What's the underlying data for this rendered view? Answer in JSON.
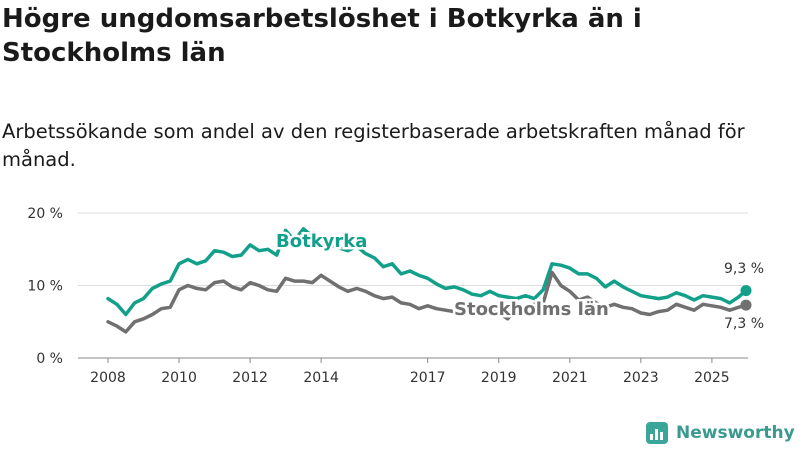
{
  "title": "Högre ungdomsarbetslöshet i Botkyrka än i Stockholms län",
  "subtitle": "Arbetssökande som andel av den registerbaserade arbetskraften månad för månad.",
  "brand": {
    "name": "Newsworthy",
    "icon": "newsworthy-logo-icon"
  },
  "colors": {
    "botkyrka": "#13a08a",
    "stockholm": "#707070",
    "grid": "#dddddd",
    "axis": "#888888"
  },
  "chart_data": {
    "type": "line",
    "title": "Högre ungdomsarbetslöshet i Botkyrka än i Stockholms län",
    "subtitle": "Arbetssökande som andel av den registerbaserade arbetskraften månad för månad.",
    "xlabel": "",
    "ylabel": "",
    "ylim": [
      0,
      20
    ],
    "xlim": [
      2008.0,
      2025.96
    ],
    "y_ticks": [
      {
        "value": 0,
        "label": "0 %"
      },
      {
        "value": 10,
        "label": "10 %"
      },
      {
        "value": 20,
        "label": "20 %"
      }
    ],
    "x_ticks": [
      {
        "value": 2008,
        "label": "2008"
      },
      {
        "value": 2010,
        "label": "2010"
      },
      {
        "value": 2012,
        "label": "2012"
      },
      {
        "value": 2014,
        "label": "2014"
      },
      {
        "value": 2017,
        "label": "2017"
      },
      {
        "value": 2019,
        "label": "2019"
      },
      {
        "value": 2021,
        "label": "2021"
      },
      {
        "value": 2023,
        "label": "2023"
      },
      {
        "value": 2025,
        "label": "2025"
      }
    ],
    "grid": true,
    "series": [
      {
        "name": "Botkyrka",
        "end_label": "9,3 %",
        "x": [
          2008.0,
          2008.25,
          2008.5,
          2008.75,
          2009.0,
          2009.25,
          2009.5,
          2009.75,
          2010.0,
          2010.25,
          2010.5,
          2010.75,
          2011.0,
          2011.25,
          2011.5,
          2011.75,
          2012.0,
          2012.25,
          2012.5,
          2012.75,
          2013.0,
          2013.25,
          2013.5,
          2013.75,
          2014.0,
          2014.25,
          2014.5,
          2014.75,
          2015.0,
          2015.25,
          2015.5,
          2015.75,
          2016.0,
          2016.25,
          2016.5,
          2016.75,
          2017.0,
          2017.25,
          2017.5,
          2017.75,
          2018.0,
          2018.25,
          2018.5,
          2018.75,
          2019.0,
          2019.25,
          2019.5,
          2019.75,
          2020.0,
          2020.25,
          2020.5,
          2020.75,
          2021.0,
          2021.25,
          2021.5,
          2021.75,
          2022.0,
          2022.25,
          2022.5,
          2022.75,
          2023.0,
          2023.25,
          2023.5,
          2023.75,
          2024.0,
          2024.25,
          2024.5,
          2024.75,
          2025.0,
          2025.25,
          2025.5,
          2025.75,
          2025.96
        ],
        "values": [
          8.2,
          7.4,
          6.0,
          7.6,
          8.2,
          9.6,
          10.2,
          10.6,
          13.0,
          13.6,
          13.0,
          13.4,
          14.8,
          14.6,
          14.0,
          14.2,
          15.6,
          14.8,
          15.0,
          14.2,
          17.6,
          16.2,
          17.8,
          16.8,
          16.4,
          15.6,
          15.2,
          14.8,
          15.4,
          14.4,
          13.8,
          12.6,
          13.0,
          11.6,
          12.0,
          11.4,
          11.0,
          10.2,
          9.6,
          9.8,
          9.4,
          8.8,
          8.6,
          9.2,
          8.6,
          8.4,
          8.2,
          8.6,
          8.2,
          9.4,
          13.0,
          12.8,
          12.4,
          11.6,
          11.6,
          11.0,
          9.8,
          10.6,
          9.8,
          9.2,
          8.6,
          8.4,
          8.2,
          8.4,
          9.0,
          8.6,
          8.0,
          8.6,
          8.4,
          8.2,
          7.6,
          8.4,
          9.3
        ]
      },
      {
        "name": "Stockholms län",
        "end_label": "7,3 %",
        "x": [
          2008.0,
          2008.25,
          2008.5,
          2008.75,
          2009.0,
          2009.25,
          2009.5,
          2009.75,
          2010.0,
          2010.25,
          2010.5,
          2010.75,
          2011.0,
          2011.25,
          2011.5,
          2011.75,
          2012.0,
          2012.25,
          2012.5,
          2012.75,
          2013.0,
          2013.25,
          2013.5,
          2013.75,
          2014.0,
          2014.25,
          2014.5,
          2014.75,
          2015.0,
          2015.25,
          2015.5,
          2015.75,
          2016.0,
          2016.25,
          2016.5,
          2016.75,
          2017.0,
          2017.25,
          2017.5,
          2017.75,
          2018.0,
          2018.25,
          2018.5,
          2018.75,
          2019.0,
          2019.25,
          2019.5,
          2019.75,
          2020.0,
          2020.25,
          2020.5,
          2020.75,
          2021.0,
          2021.25,
          2021.5,
          2021.75,
          2022.0,
          2022.25,
          2022.5,
          2022.75,
          2023.0,
          2023.25,
          2023.5,
          2023.75,
          2024.0,
          2024.25,
          2024.5,
          2024.75,
          2025.0,
          2025.25,
          2025.5,
          2025.75,
          2025.96
        ],
        "values": [
          5.0,
          4.4,
          3.6,
          5.0,
          5.4,
          6.0,
          6.8,
          7.0,
          9.4,
          10.0,
          9.6,
          9.4,
          10.4,
          10.6,
          9.8,
          9.4,
          10.4,
          10.0,
          9.4,
          9.2,
          11.0,
          10.6,
          10.6,
          10.4,
          11.4,
          10.6,
          9.8,
          9.2,
          9.6,
          9.2,
          8.6,
          8.2,
          8.4,
          7.6,
          7.4,
          6.8,
          7.2,
          6.8,
          6.6,
          6.4,
          6.8,
          6.4,
          6.2,
          6.6,
          6.2,
          5.4,
          6.8,
          7.0,
          7.4,
          7.6,
          11.8,
          10.0,
          9.2,
          8.0,
          8.4,
          7.6,
          7.0,
          7.4,
          7.0,
          6.8,
          6.2,
          6.0,
          6.4,
          6.6,
          7.4,
          7.0,
          6.6,
          7.4,
          7.2,
          7.0,
          6.6,
          7.0,
          7.3
        ]
      }
    ]
  }
}
